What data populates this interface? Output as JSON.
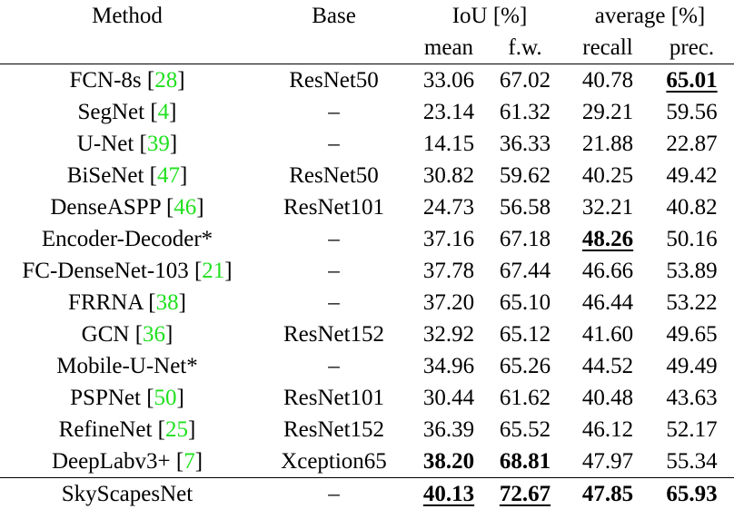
{
  "header": {
    "method": "Method",
    "base": "Base",
    "iou_group": "IoU [%]",
    "average_group": "average [%]",
    "mean": "mean",
    "fw": "f.w.",
    "recall": "recall",
    "prec": "prec."
  },
  "colors": {
    "citation": "#1fe01f"
  },
  "rows": [
    {
      "method": "FCN-8s",
      "ref": "28",
      "base": "ResNet50",
      "mean": "33.06",
      "fw": "67.02",
      "recall": "40.78",
      "prec": "65.01",
      "bold": [
        "prec"
      ],
      "underline": [
        "prec"
      ]
    },
    {
      "method": "SegNet",
      "ref": "4",
      "base": "–",
      "mean": "23.14",
      "fw": "61.32",
      "recall": "29.21",
      "prec": "59.56",
      "bold": [],
      "underline": []
    },
    {
      "method": "U-Net",
      "ref": "39",
      "base": "–",
      "mean": "14.15",
      "fw": "36.33",
      "recall": "21.88",
      "prec": "22.87",
      "bold": [],
      "underline": []
    },
    {
      "method": "BiSeNet",
      "ref": "47",
      "base": "ResNet50",
      "mean": "30.82",
      "fw": "59.62",
      "recall": "40.25",
      "prec": "49.42",
      "bold": [],
      "underline": []
    },
    {
      "method": "DenseASPP",
      "ref": "46",
      "base": "ResNet101",
      "mean": "24.73",
      "fw": "56.58",
      "recall": "32.21",
      "prec": "40.82",
      "bold": [],
      "underline": []
    },
    {
      "method": "Encoder-Decoder*",
      "ref": "",
      "base": "–",
      "mean": "37.16",
      "fw": "67.18",
      "recall": "48.26",
      "prec": "50.16",
      "bold": [
        "recall"
      ],
      "underline": [
        "recall"
      ]
    },
    {
      "method": "FC-DenseNet-103",
      "ref": "21",
      "base": "–",
      "mean": "37.78",
      "fw": "67.44",
      "recall": "46.66",
      "prec": "53.89",
      "bold": [],
      "underline": []
    },
    {
      "method": "FRRNA",
      "ref": "38",
      "base": "–",
      "mean": "37.20",
      "fw": "65.10",
      "recall": "46.44",
      "prec": "53.22",
      "bold": [],
      "underline": []
    },
    {
      "method": "GCN",
      "ref": "36",
      "base": "ResNet152",
      "mean": "32.92",
      "fw": "65.12",
      "recall": "41.60",
      "prec": "49.65",
      "bold": [],
      "underline": []
    },
    {
      "method": "Mobile-U-Net*",
      "ref": "",
      "base": "–",
      "mean": "34.96",
      "fw": "65.26",
      "recall": "44.52",
      "prec": "49.49",
      "bold": [],
      "underline": []
    },
    {
      "method": "PSPNet",
      "ref": "50",
      "base": "ResNet101",
      "mean": "30.44",
      "fw": "61.62",
      "recall": "40.48",
      "prec": "43.63",
      "bold": [],
      "underline": []
    },
    {
      "method": "RefineNet",
      "ref": "25",
      "base": "ResNet152",
      "mean": "36.39",
      "fw": "65.52",
      "recall": "46.12",
      "prec": "52.17",
      "bold": [],
      "underline": []
    },
    {
      "method": "DeepLabv3+",
      "ref": "7",
      "base": "Xception65",
      "mean": "38.20",
      "fw": "68.81",
      "recall": "47.97",
      "prec": "55.34",
      "bold": [
        "mean",
        "fw"
      ],
      "underline": []
    },
    {
      "method": "SkyScapesNet",
      "ref": "",
      "base": "–",
      "mean": "40.13",
      "fw": "72.67",
      "recall": "47.85",
      "prec": "65.93",
      "bold": [
        "mean",
        "fw",
        "recall",
        "prec"
      ],
      "underline": [
        "mean",
        "fw"
      ]
    }
  ]
}
